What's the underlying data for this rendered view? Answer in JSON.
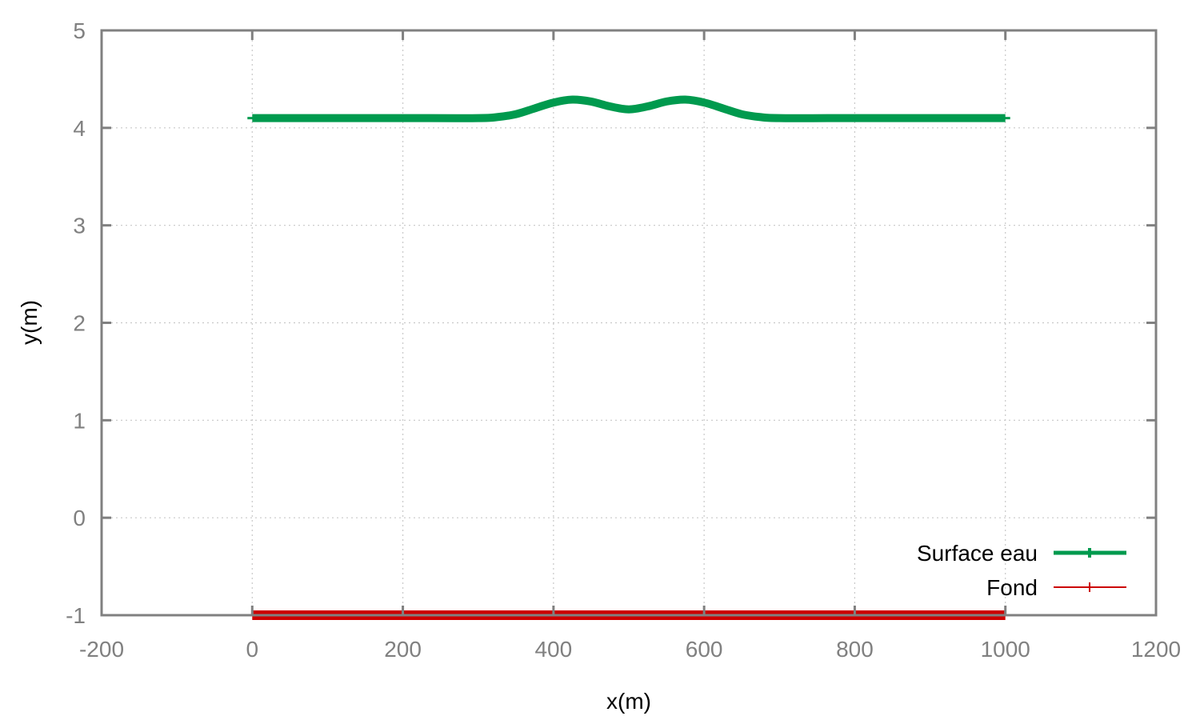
{
  "chart_data": {
    "type": "line",
    "xlabel": "x(m)",
    "ylabel": "y(m)",
    "xlim": [
      -200,
      1200
    ],
    "ylim": [
      -1,
      5
    ],
    "xticks": [
      -200,
      0,
      200,
      400,
      600,
      800,
      1000,
      1200
    ],
    "yticks": [
      -1,
      0,
      1,
      2,
      3,
      4,
      5
    ],
    "grid": true,
    "legend_position": "bottom-right",
    "series": [
      {
        "name": "Surface eau",
        "color": "#009a4e",
        "x": [
          0,
          100,
          200,
          300,
          325,
          350,
          375,
          400,
          425,
          450,
          475,
          500,
          525,
          550,
          575,
          600,
          625,
          650,
          675,
          700,
          800,
          900,
          1000
        ],
        "y": [
          4.1,
          4.1,
          4.1,
          4.1,
          4.11,
          4.14,
          4.2,
          4.26,
          4.29,
          4.27,
          4.22,
          4.19,
          4.22,
          4.27,
          4.29,
          4.26,
          4.2,
          4.14,
          4.11,
          4.1,
          4.1,
          4.1,
          4.1
        ]
      },
      {
        "name": "Fond",
        "color": "#cc0000",
        "x": [
          0,
          1000
        ],
        "y": [
          -1,
          -1
        ]
      }
    ]
  }
}
